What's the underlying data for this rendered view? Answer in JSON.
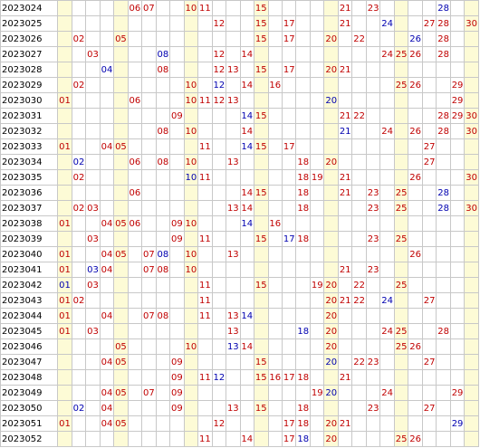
{
  "colors": {
    "red_ball": "#c00000",
    "blue_ball": "#0000b0",
    "shade_column": "#fdfbd6",
    "grid_line": "#c8c8c8"
  },
  "number_range": {
    "min": 1,
    "max": 30
  },
  "shaded_columns": [
    1,
    5,
    10,
    15,
    20,
    25,
    30
  ],
  "rows": [
    {
      "period": "2023024",
      "red": [
        "06",
        "07",
        "10",
        "11",
        "15",
        "21",
        "23"
      ],
      "blue": [
        "28"
      ]
    },
    {
      "period": "2023025",
      "red": [
        "12",
        "15",
        "17",
        "21",
        "27",
        "28",
        "30"
      ],
      "blue": [
        "24"
      ]
    },
    {
      "period": "2023026",
      "red": [
        "02",
        "05",
        "15",
        "17",
        "20",
        "22",
        "28"
      ],
      "blue": [
        "26"
      ]
    },
    {
      "period": "2023027",
      "red": [
        "03",
        "12",
        "14",
        "24",
        "25",
        "26",
        "28"
      ],
      "blue": [
        "08"
      ]
    },
    {
      "period": "2023028",
      "red": [
        "08",
        "12",
        "13",
        "15",
        "17",
        "20",
        "21"
      ],
      "blue": [
        "04"
      ]
    },
    {
      "period": "2023029",
      "red": [
        "02",
        "10",
        "14",
        "16",
        "25",
        "26",
        "29"
      ],
      "blue": [
        "12"
      ]
    },
    {
      "period": "2023030",
      "red": [
        "01",
        "06",
        "10",
        "11",
        "12",
        "13",
        "29"
      ],
      "blue": [
        "20"
      ]
    },
    {
      "period": "2023031",
      "red": [
        "09",
        "15",
        "21",
        "22",
        "28",
        "29",
        "30"
      ],
      "blue": [
        "14"
      ]
    },
    {
      "period": "2023032",
      "red": [
        "08",
        "10",
        "14",
        "24",
        "26",
        "28",
        "30"
      ],
      "blue": [
        "21"
      ]
    },
    {
      "period": "2023033",
      "red": [
        "01",
        "04",
        "05",
        "11",
        "15",
        "17",
        "27"
      ],
      "blue": [
        "14"
      ]
    },
    {
      "period": "2023034",
      "red": [
        "06",
        "08",
        "10",
        "13",
        "18",
        "20",
        "27"
      ],
      "blue": [
        "02"
      ]
    },
    {
      "period": "2023035",
      "red": [
        "02",
        "11",
        "18",
        "19",
        "21",
        "26",
        "30"
      ],
      "blue": [
        "10"
      ]
    },
    {
      "period": "2023036",
      "red": [
        "06",
        "14",
        "15",
        "18",
        "21",
        "23",
        "25"
      ],
      "blue": [
        "28"
      ]
    },
    {
      "period": "2023037",
      "red": [
        "02",
        "03",
        "13",
        "14",
        "18",
        "23",
        "25",
        "30"
      ],
      "blue": [
        "28"
      ]
    },
    {
      "period": "2023038",
      "red": [
        "01",
        "04",
        "05",
        "06",
        "09",
        "10",
        "16"
      ],
      "blue": [
        "14"
      ]
    },
    {
      "period": "2023039",
      "red": [
        "03",
        "09",
        "11",
        "15",
        "18",
        "23",
        "25"
      ],
      "blue": [
        "17"
      ]
    },
    {
      "period": "2023040",
      "red": [
        "01",
        "04",
        "05",
        "07",
        "10",
        "13",
        "26"
      ],
      "blue": [
        "08"
      ]
    },
    {
      "period": "2023041",
      "red": [
        "01",
        "04",
        "07",
        "08",
        "10",
        "21",
        "23"
      ],
      "blue": [
        "03"
      ]
    },
    {
      "period": "2023042",
      "red": [
        "03",
        "11",
        "15",
        "19",
        "20",
        "22",
        "25"
      ],
      "blue": [
        "01"
      ]
    },
    {
      "period": "2023043",
      "red": [
        "01",
        "02",
        "11",
        "20",
        "21",
        "22",
        "27"
      ],
      "blue": [
        "24"
      ]
    },
    {
      "period": "2023044",
      "red": [
        "01",
        "04",
        "07",
        "08",
        "11",
        "13",
        "20"
      ],
      "blue": [
        "14"
      ]
    },
    {
      "period": "2023045",
      "red": [
        "01",
        "03",
        "13",
        "20",
        "24",
        "25",
        "28"
      ],
      "blue": [
        "18"
      ]
    },
    {
      "period": "2023046",
      "red": [
        "05",
        "10",
        "14",
        "20",
        "25",
        "26"
      ],
      "blue": [
        "13"
      ]
    },
    {
      "period": "2023047",
      "red": [
        "04",
        "05",
        "09",
        "15",
        "22",
        "23",
        "27"
      ],
      "blue": [
        "20"
      ]
    },
    {
      "period": "2023048",
      "red": [
        "09",
        "11",
        "15",
        "16",
        "17",
        "18",
        "21"
      ],
      "blue": [
        "12"
      ]
    },
    {
      "period": "2023049",
      "red": [
        "04",
        "05",
        "07",
        "09",
        "19",
        "24",
        "29"
      ],
      "blue": [
        "20"
      ]
    },
    {
      "period": "2023050",
      "red": [
        "04",
        "09",
        "13",
        "15",
        "18",
        "23",
        "27"
      ],
      "blue": [
        "02"
      ]
    },
    {
      "period": "2023051",
      "red": [
        "01",
        "04",
        "05",
        "12",
        "17",
        "18",
        "20",
        "21"
      ],
      "blue": [
        "29"
      ]
    },
    {
      "period": "2023052",
      "red": [
        "11",
        "14",
        "17",
        "20",
        "25",
        "26"
      ],
      "blue": [
        "18"
      ]
    }
  ]
}
